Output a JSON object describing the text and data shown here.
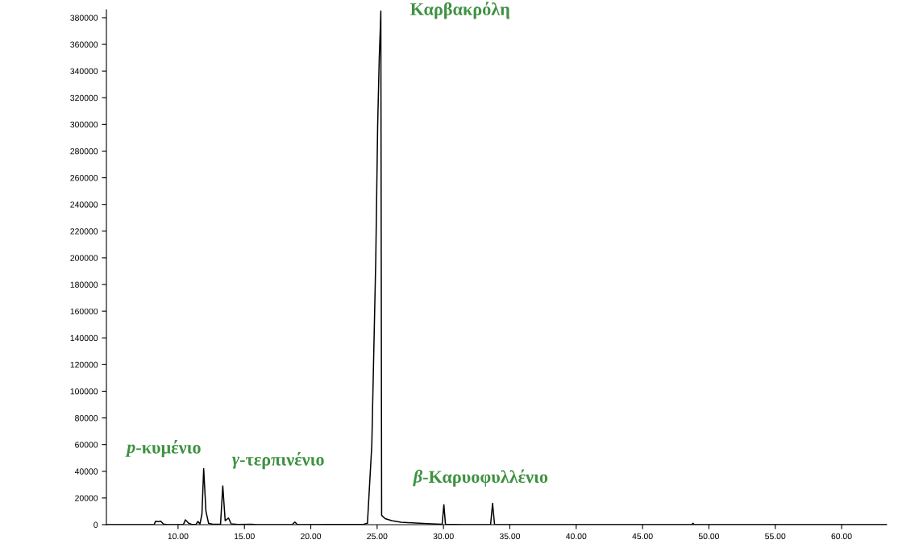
{
  "chart_data": {
    "type": "line",
    "x": [
      4.6,
      8.2,
      8.3,
      8.5,
      8.7,
      8.9,
      9.2,
      10.4,
      10.55,
      10.8,
      11.0,
      11.35,
      11.5,
      11.65,
      11.8,
      11.93,
      12.1,
      12.3,
      12.6,
      13.2,
      13.37,
      13.55,
      13.8,
      14.0,
      14.5,
      15.5,
      16.0,
      18.6,
      18.8,
      19.0,
      24.0,
      24.27,
      24.6,
      24.9,
      25.04,
      25.16,
      25.24,
      25.28,
      25.31,
      25.34,
      25.6,
      26.1,
      26.8,
      27.9,
      29.1,
      29.9,
      30.03,
      30.15,
      31.5,
      33.55,
      33.7,
      33.85,
      48.7,
      48.8,
      48.9,
      63.4
    ],
    "series": [
      {
        "color": "#000000",
        "values": [
          0,
          0,
          2500,
          2200,
          2600,
          500,
          0,
          0,
          3600,
          1000,
          300,
          200,
          2400,
          500,
          8000,
          42000,
          10000,
          1000,
          300,
          300,
          29000,
          3000,
          5000,
          600,
          200,
          300,
          0,
          0,
          2000,
          0,
          300,
          1000,
          60000,
          200000,
          299000,
          350000,
          372000,
          385000,
          200000,
          7000,
          4500,
          3000,
          1800,
          1200,
          600,
          300,
          15000,
          300,
          0,
          0,
          16000,
          0,
          0,
          1000,
          0,
          0
        ]
      }
    ],
    "xlim": [
      4.6,
      63.4
    ],
    "xticks": [
      {
        "value": 10,
        "label": "10.00"
      },
      {
        "value": 15,
        "label": "15.00"
      },
      {
        "value": 20,
        "label": "20.00"
      },
      {
        "value": 25,
        "label": "25.00"
      },
      {
        "value": 30,
        "label": "30.00"
      },
      {
        "value": 35,
        "label": "35.00"
      },
      {
        "value": 40,
        "label": "40.00"
      },
      {
        "value": 45,
        "label": "45.00"
      },
      {
        "value": 50,
        "label": "50.00"
      },
      {
        "value": 55,
        "label": "55.00"
      },
      {
        "value": 60,
        "label": "60.00"
      }
    ],
    "ylim": [
      0,
      386000
    ],
    "yticks": [
      0,
      20000,
      40000,
      60000,
      80000,
      100000,
      120000,
      140000,
      160000,
      180000,
      200000,
      220000,
      240000,
      260000,
      280000,
      300000,
      320000,
      340000,
      360000,
      380000
    ],
    "grid": false,
    "legend": false,
    "marker": "none",
    "line_style": "solid",
    "annotations": [
      {
        "text": "p-κυμένιο",
        "x": 11.93,
        "y": 42000
      },
      {
        "text": "γ-τερπινένιο",
        "x": 13.37,
        "y": 29000
      },
      {
        "text": "Καρβακρόλη",
        "x": 25.28,
        "y": 385000
      },
      {
        "text": "β-Καρυοφυλλένιο",
        "x": 30.03,
        "y": 15000
      }
    ]
  }
}
